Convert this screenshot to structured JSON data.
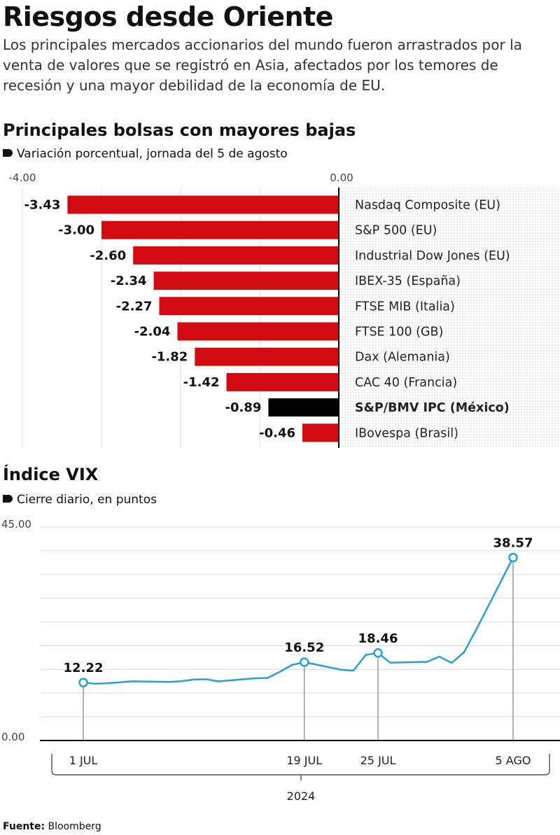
{
  "title": "Riesgos desde Oriente",
  "subtitle": "Los principales mercados accionarios del mundo fueron arrastrados por la venta de valores que se registró en Asia, afectados por los temores de recesión y una mayor debilidad de la economía de EU.",
  "bars_section": {
    "title": "Principales bolsas con mayores bajas",
    "subtitle": "Variación porcentual, jornada del 5 de agosto"
  },
  "vix_section": {
    "title": "Índice VIX",
    "subtitle": "Cierre diario, en puntos"
  },
  "footer": {
    "label": "Fuente:",
    "source": "Bloomberg"
  },
  "colors": {
    "bar": "#d20a11",
    "highlight": "#000000",
    "line": "#2a9fd6"
  },
  "chart_data": [
    {
      "type": "bar",
      "orientation": "horizontal",
      "xlim": [
        -4.0,
        0.0
      ],
      "tick_labels": [
        "-4.00",
        "0.00"
      ],
      "categories": [
        "Nasdaq Composite (EU)",
        "S&P 500 (EU)",
        "Industrial Dow Jones (EU)",
        "IBEX-35 (España)",
        "FTSE MIB (Italia)",
        "FTSE 100 (GB)",
        "Dax (Alemania)",
        "CAC 40 (Francia)",
        "S&P/BMV IPC (México)",
        "IBovespa (Brasil)"
      ],
      "values": [
        -3.43,
        -3.0,
        -2.6,
        -2.34,
        -2.27,
        -2.04,
        -1.82,
        -1.42,
        -0.89,
        -0.46
      ],
      "value_labels": [
        "-3.43",
        "-3.00",
        "-2.60",
        "-2.34",
        "-2.27",
        "-2.04",
        "-1.82",
        "-1.42",
        "-0.89",
        "-0.46"
      ],
      "highlight": "S&P/BMV IPC (México)"
    },
    {
      "type": "line",
      "ylim": [
        0,
        45
      ],
      "y_tick_labels": [
        "45.00",
        "0.00"
      ],
      "x": [
        "2024-07-01",
        "2024-07-02",
        "2024-07-03",
        "2024-07-05",
        "2024-07-08",
        "2024-07-09",
        "2024-07-10",
        "2024-07-11",
        "2024-07-12",
        "2024-07-15",
        "2024-07-16",
        "2024-07-17",
        "2024-07-18",
        "2024-07-19",
        "2024-07-22",
        "2024-07-23",
        "2024-07-24",
        "2024-07-25",
        "2024-07-26",
        "2024-07-29",
        "2024-07-30",
        "2024-07-31",
        "2024-08-01",
        "2024-08-02",
        "2024-08-05"
      ],
      "values": [
        12.22,
        11.96,
        12.09,
        12.48,
        12.37,
        12.51,
        12.85,
        12.91,
        12.46,
        13.12,
        13.19,
        14.48,
        15.93,
        16.52,
        14.91,
        14.72,
        18.04,
        18.46,
        16.39,
        16.6,
        17.69,
        16.36,
        18.59,
        23.39,
        38.57
      ],
      "x_tick_labels": [
        "1 JUL",
        "19 JUL",
        "25 JUL",
        "5 AGO"
      ],
      "x_tick_indices": [
        0,
        13,
        17,
        24
      ],
      "year_label": "2024",
      "annotated_indices": [
        0,
        13,
        17,
        24
      ],
      "annotation_labels": [
        "12.22",
        "16.52",
        "18.46",
        "38.57"
      ]
    }
  ]
}
